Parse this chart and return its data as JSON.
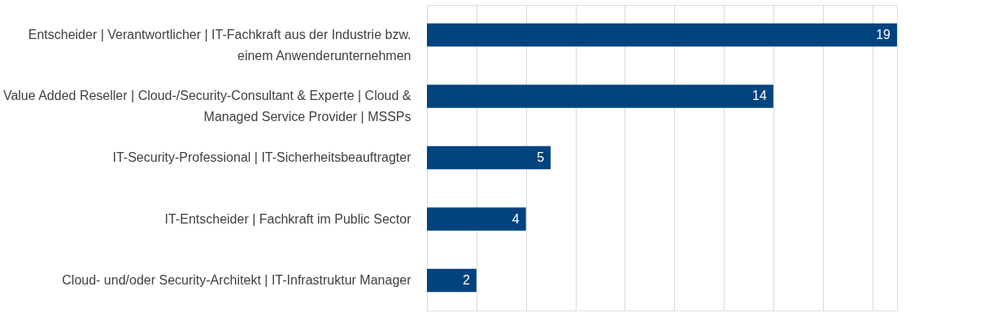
{
  "chart_data": {
    "type": "bar",
    "orientation": "horizontal",
    "categories": [
      "Entscheider | Verantwortlicher | IT-Fachkraft aus der Industrie bzw. einem Anwenderunternehmen",
      "Value Added Reseller | Cloud-/Security-Consultant & Experte | Cloud & Managed Service Provider | MSSPs",
      "IT-Security-Professional | IT-Sicherheitsbeauftragter",
      "IT-Entscheider | Fachkraft im Public Sector",
      "Cloud- und/oder Security-Architekt | IT-Infrastruktur Manager"
    ],
    "values": [
      19,
      14,
      5,
      4,
      2
    ],
    "color": "#00437f",
    "data_labels": true,
    "xlim": [
      0,
      19
    ],
    "xticks": [
      {
        "value": 0,
        "label": null
      },
      {
        "value": 2,
        "label": null
      },
      {
        "value": 4,
        "label": null
      },
      {
        "value": 6,
        "label": null
      },
      {
        "value": 8,
        "label": null
      },
      {
        "value": 10,
        "label": null
      },
      {
        "value": 12,
        "label": null
      },
      {
        "value": 14,
        "label": null
      },
      {
        "value": 16,
        "label": null
      },
      {
        "value": 18,
        "label": null
      }
    ],
    "grid": "x",
    "tick_labels": "y"
  }
}
